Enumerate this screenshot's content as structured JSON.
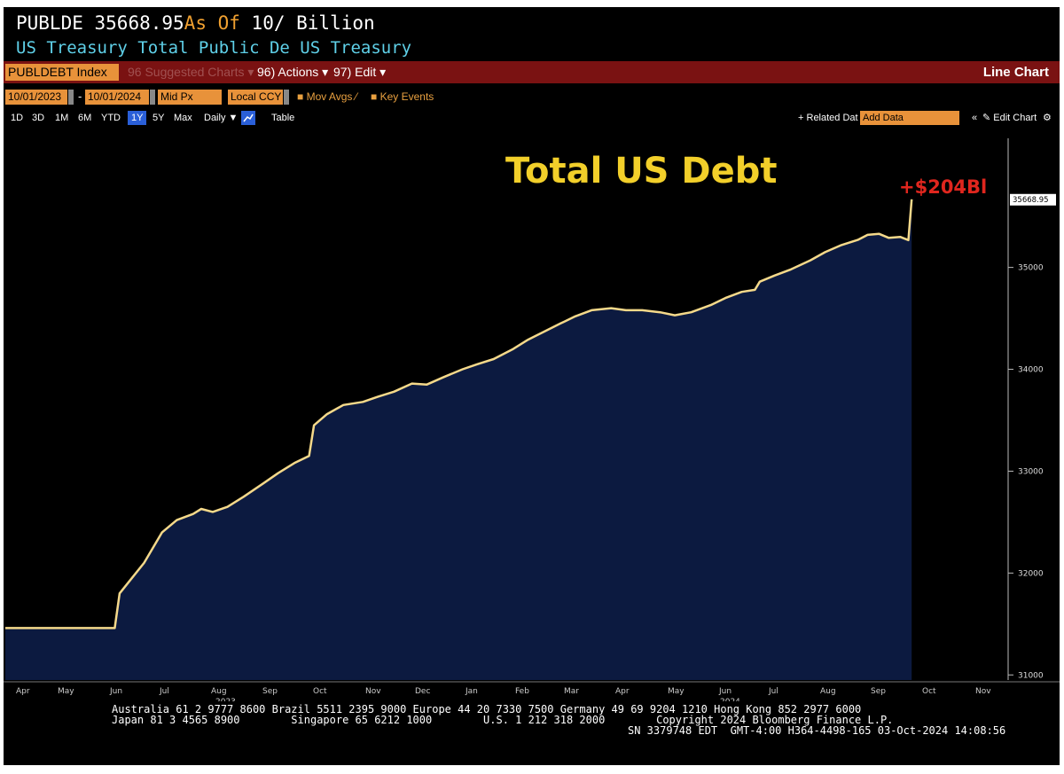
{
  "header": {
    "ticker": "PUBLDE",
    "value": "35668.95",
    "as_of": "As Of",
    "date_frag": "10/",
    "unit": "Billion",
    "subtitle": "US Treasury Total Public De US Treasury"
  },
  "toolbar": {
    "index": "PUBLDEBT Index",
    "suggested": "Suggested Charts",
    "actions": "Actions",
    "edit": "Edit",
    "chart_type": "Line Chart",
    "start_date": "10/01/2023",
    "end_date": "10/01/2024",
    "price": "Mid Px",
    "currency": "Local CCY",
    "mov_avgs": "Mov Avgs",
    "key_events": "Key Events",
    "ranges": [
      "1D",
      "3D",
      "1M",
      "6M",
      "YTD",
      "1Y",
      "5Y",
      "Max"
    ],
    "active_range": "1Y",
    "frequency": "Daily",
    "table": "Table",
    "related": "Related Dat",
    "add_data": "Add Data",
    "edit_chart": "Edit Chart"
  },
  "chart_data": {
    "type": "area",
    "title": "Total US Debt",
    "annotation": "+$204Bl",
    "last_value_label": "35668.95",
    "ylim": [
      30950,
      36250
    ],
    "y_ticks": [
      31000,
      32000,
      33000,
      34000,
      35000
    ],
    "y_tick_labels": [
      "31000",
      "32000",
      "33000",
      "34000",
      "35000"
    ],
    "x_month_labels": [
      "Apr",
      "May",
      "Jun",
      "Jul",
      "Aug",
      "Sep",
      "Oct",
      "Nov",
      "Dec",
      "Jan",
      "Feb",
      "Mar",
      "Apr",
      "May",
      "Jun",
      "Jul",
      "Aug",
      "Sep",
      "Oct",
      "Nov"
    ],
    "year_labels": [
      "2023",
      "2024"
    ],
    "x_start": "2023-03-27",
    "x_end": "2024-11-29",
    "series": [
      {
        "points": [
          [
            "2023-03-27",
            31460
          ],
          [
            "2023-04-10",
            31460
          ],
          [
            "2023-04-24",
            31460
          ],
          [
            "2023-05-08",
            31460
          ],
          [
            "2023-05-22",
            31460
          ],
          [
            "2023-06-02",
            31460
          ],
          [
            "2023-06-05",
            31800
          ],
          [
            "2023-06-10",
            31900
          ],
          [
            "2023-06-20",
            32100
          ],
          [
            "2023-07-01",
            32400
          ],
          [
            "2023-07-10",
            32520
          ],
          [
            "2023-07-20",
            32580
          ],
          [
            "2023-07-25",
            32630
          ],
          [
            "2023-08-01",
            32600
          ],
          [
            "2023-08-10",
            32650
          ],
          [
            "2023-08-20",
            32750
          ],
          [
            "2023-09-01",
            32880
          ],
          [
            "2023-09-10",
            32980
          ],
          [
            "2023-09-20",
            33080
          ],
          [
            "2023-09-29",
            33150
          ],
          [
            "2023-10-02",
            33450
          ],
          [
            "2023-10-10",
            33560
          ],
          [
            "2023-10-20",
            33650
          ],
          [
            "2023-11-01",
            33680
          ],
          [
            "2023-11-10",
            33730
          ],
          [
            "2023-11-20",
            33780
          ],
          [
            "2023-12-01",
            33860
          ],
          [
            "2023-12-10",
            33850
          ],
          [
            "2023-12-20",
            33920
          ],
          [
            "2024-01-01",
            34000
          ],
          [
            "2024-01-10",
            34050
          ],
          [
            "2024-01-20",
            34100
          ],
          [
            "2024-02-01",
            34200
          ],
          [
            "2024-02-10",
            34290
          ],
          [
            "2024-02-20",
            34370
          ],
          [
            "2024-03-01",
            34450
          ],
          [
            "2024-03-10",
            34520
          ],
          [
            "2024-03-20",
            34580
          ],
          [
            "2024-04-01",
            34600
          ],
          [
            "2024-04-10",
            34580
          ],
          [
            "2024-04-20",
            34580
          ],
          [
            "2024-05-01",
            34560
          ],
          [
            "2024-05-10",
            34530
          ],
          [
            "2024-05-20",
            34560
          ],
          [
            "2024-06-01",
            34630
          ],
          [
            "2024-06-10",
            34700
          ],
          [
            "2024-06-20",
            34760
          ],
          [
            "2024-06-28",
            34780
          ],
          [
            "2024-07-01",
            34860
          ],
          [
            "2024-07-10",
            34920
          ],
          [
            "2024-07-20",
            34980
          ],
          [
            "2024-08-01",
            35070
          ],
          [
            "2024-08-10",
            35150
          ],
          [
            "2024-08-20",
            35220
          ],
          [
            "2024-08-30",
            35270
          ],
          [
            "2024-09-05",
            35320
          ],
          [
            "2024-09-12",
            35330
          ],
          [
            "2024-09-18",
            35290
          ],
          [
            "2024-09-25",
            35300
          ],
          [
            "2024-09-30",
            35268
          ],
          [
            "2024-10-02",
            35668.95
          ]
        ]
      }
    ]
  },
  "footer": {
    "line1": "Australia 61 2 9777 8600 Brazil 5511 2395 9000 Europe 44 20 7330 7500 Germany 49 69 9204 1210 Hong Kong 852 2977 6000",
    "line2": "Japan 81 3 4565 8900        Singapore 65 6212 1000        U.S. 1 212 318 2000        Copyright 2024 Bloomberg Finance L.P.",
    "line3": "SN 3379748 EDT  GMT-4:00 H364-4498-165 03-Oct-2024 14:08:56"
  },
  "colors": {
    "line": "#f5d98a",
    "area": "#0c1a40",
    "title": "#f2cf2a",
    "annotation": "#e0261e",
    "orange": "#e8923a",
    "redbar": "#7a1212"
  },
  "icons": [
    "gear-icon",
    "pencil-icon",
    "chart-icon",
    "plus-icon",
    "collapse-icon"
  ]
}
